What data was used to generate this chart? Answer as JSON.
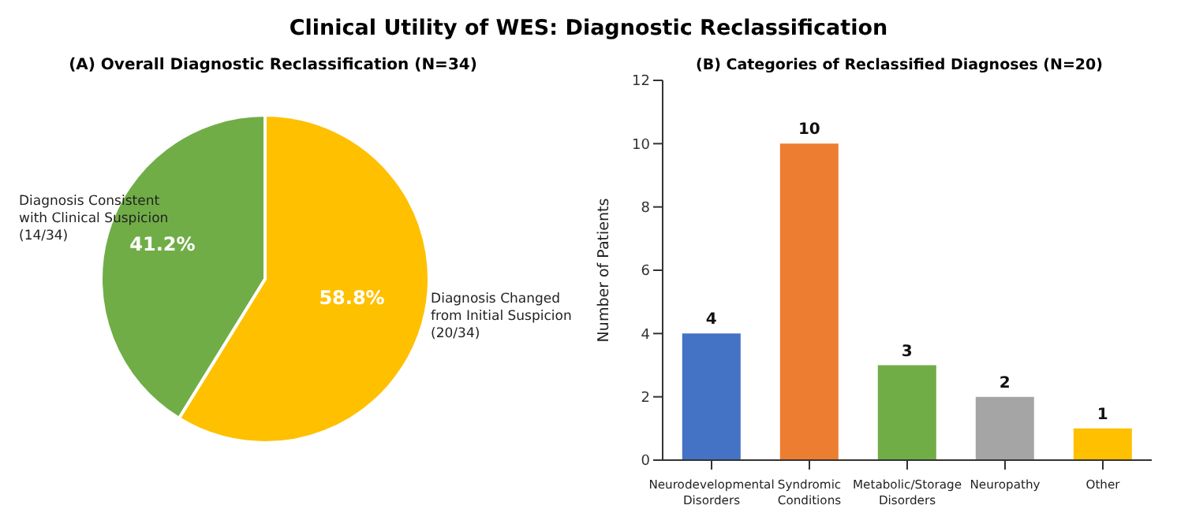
{
  "chart_data": [
    {
      "type": "pie",
      "title": "(A) Overall Diagnostic Reclassification (N=34)",
      "annotations": [
        "Clinical Utility of WES: Diagnostic Reclassification"
      ],
      "categories": [
        "Diagnosis Changed\nfrom Initial Suspicion\n(20/34)",
        "Diagnosis Consistent\nwith Clinical Suspicion\n(14/34)"
      ],
      "values": [
        58.8,
        41.2
      ],
      "value_labels": [
        "58.8%",
        "41.2%"
      ],
      "colors": [
        "#ffc000",
        "#70ad47"
      ]
    },
    {
      "type": "bar",
      "title": "(B) Categories of Reclassified Diagnoses (N=20)",
      "ylabel": "Number of Patients",
      "categories": [
        "Neurodevelopmental\nDisorders",
        "Syndromic\nConditions",
        "Metabolic/Storage\nDisorders",
        "Neuropathy",
        "Other"
      ],
      "values": [
        4,
        10,
        3,
        2,
        1
      ],
      "colors": [
        "#4472c4",
        "#ed7d31",
        "#70ad47",
        "#a5a5a5",
        "#ffc000"
      ],
      "ylim": [
        0,
        12
      ],
      "yticks": [
        0,
        2,
        4,
        6,
        8,
        10,
        12
      ],
      "data_labels": true,
      "grid": false
    }
  ]
}
